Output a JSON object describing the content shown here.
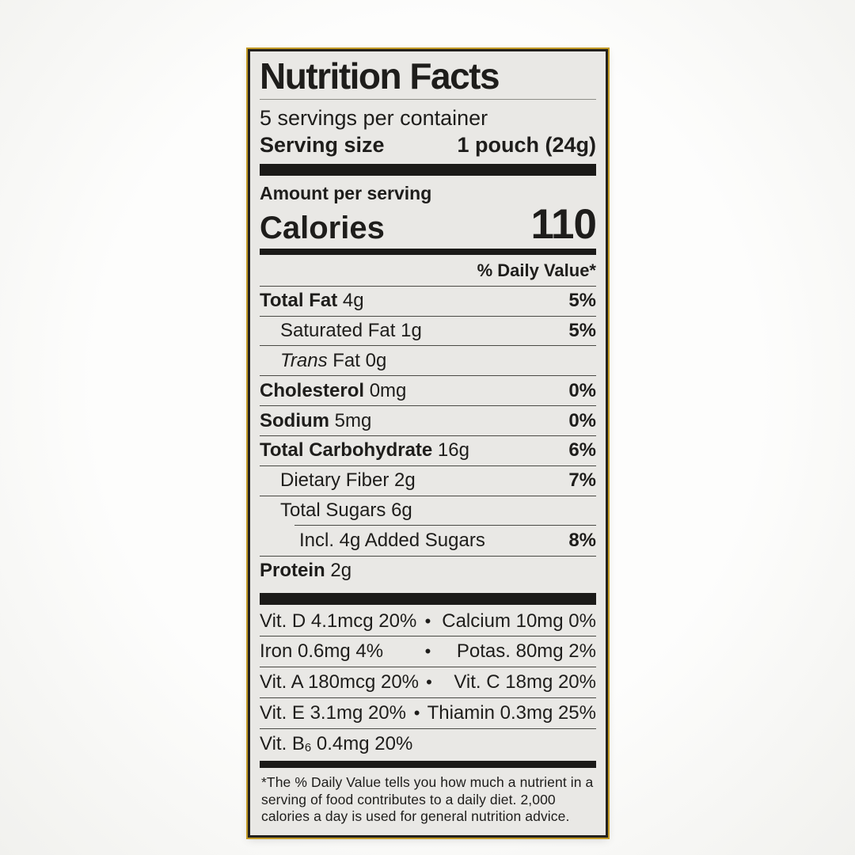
{
  "label": {
    "title": "Nutrition Facts",
    "servings_per_container": "5 servings per container",
    "serving_size_label": "Serving size",
    "serving_size_value": "1 pouch (24g)",
    "amount_per_serving": "Amount per serving",
    "calories_label": "Calories",
    "calories_value": "110",
    "daily_value_header": "% Daily Value*",
    "nutrients": [
      {
        "name": "Total Fat",
        "amount": "4g",
        "dv": "5%"
      },
      {
        "name": "Saturated Fat",
        "amount": "1g",
        "dv": "5%"
      },
      {
        "name_italic": "Trans",
        "name": "Fat",
        "amount": "0g",
        "dv": ""
      },
      {
        "name": "Cholesterol",
        "amount": "0mg",
        "dv": "0%"
      },
      {
        "name": "Sodium",
        "amount": "5mg",
        "dv": "0%"
      },
      {
        "name": "Total Carbohydrate",
        "amount": "16g",
        "dv": "6%"
      },
      {
        "name": "Dietary Fiber",
        "amount": "2g",
        "dv": "7%"
      },
      {
        "name": "Total Sugars",
        "amount": "6g",
        "dv": ""
      },
      {
        "name": "Incl. 4g Added Sugars",
        "amount": "",
        "dv": "8%"
      },
      {
        "name": "Protein",
        "amount": "2g",
        "dv": ""
      }
    ],
    "micronutrients": [
      {
        "left": "Vit. D 4.1mcg 20%",
        "bullet": "•",
        "right": "Calcium 10mg 0%"
      },
      {
        "left": "Iron 0.6mg 4%",
        "bullet": "•",
        "right": "Potas. 80mg 2%"
      },
      {
        "left": "Vit. A 180mcg 20%",
        "bullet": "•",
        "right": "Vit. C 18mg 20%"
      },
      {
        "left": "Vit. E 3.1mg 20%",
        "bullet": "•",
        "right": "Thiamin 0.3mg 25%"
      },
      {
        "left_pre": "Vit. B",
        "left_sub": "6",
        "left_post": " 0.4mg 20%",
        "bullet": "",
        "right": ""
      }
    ],
    "footnote": "*The % Daily Value tells you how much a nutrient in a serving of food contributes to a daily diet. 2,000 calories a day is used for general nutrition advice."
  },
  "colors": {
    "label_background": "#e9e8e5",
    "text": "#1e1d1b",
    "divider_bar": "#1b1a18",
    "gold_border": "#c29a25",
    "page_background": "#fdfdfc"
  }
}
